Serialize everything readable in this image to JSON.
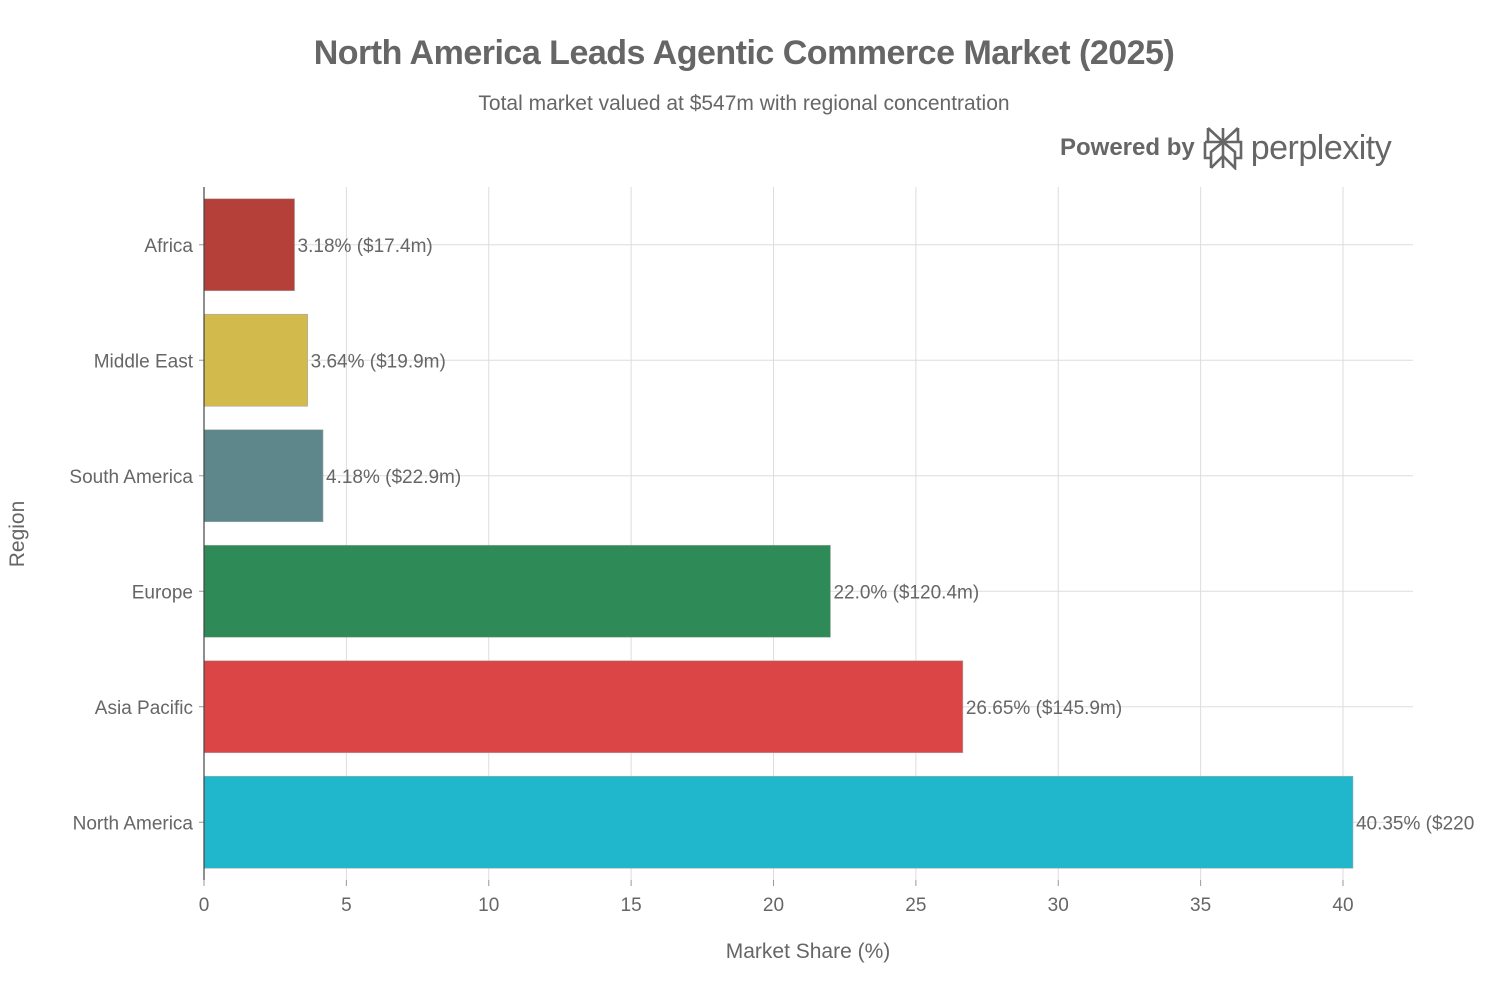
{
  "chart_data": {
    "type": "bar",
    "orientation": "horizontal",
    "title": "North America Leads Agentic Commerce Market (2025)",
    "subtitle": "Total market valued at $547m with regional concentration",
    "xlabel": "Market Share (%)",
    "ylabel": "Region",
    "xlim": [
      0,
      42.5
    ],
    "xticks": [
      0,
      5,
      10,
      15,
      20,
      25,
      30,
      35,
      40
    ],
    "grid": true,
    "categories": [
      "Africa",
      "Middle East",
      "South America",
      "Europe",
      "Asia Pacific",
      "North America"
    ],
    "values": [
      3.18,
      3.64,
      4.18,
      22.0,
      26.65,
      40.35
    ],
    "data_labels": [
      "3.18% ($17.4m)",
      "3.64% ($19.9m)",
      "4.18% ($22.9m)",
      "22.0% ($120.4m)",
      "26.65% ($145.9m)",
      "40.35% ($220"
    ],
    "colors": [
      "#B5403A",
      "#D2BA4C",
      "#5D878B",
      "#2E8B57",
      "#DB4545",
      "#20B6CC"
    ]
  },
  "branding": {
    "powered_by": "Powered by",
    "brand": "perplexity"
  }
}
